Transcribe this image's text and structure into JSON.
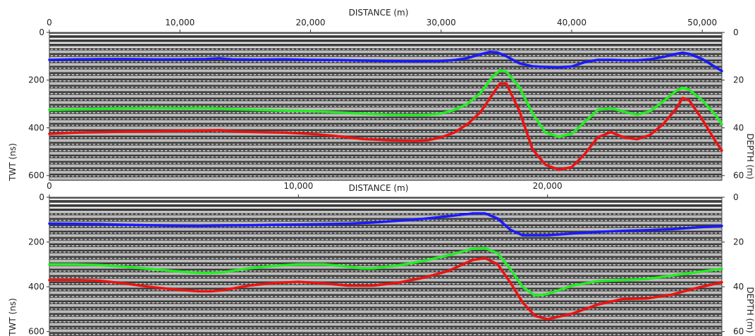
{
  "chart_data": [
    {
      "type": "line",
      "xlabel": "DISTANCE (m)",
      "ylabel": "TWT (ns)",
      "y2label": "DEPTH (m)",
      "xlim": [
        0,
        51500
      ],
      "ylim": [
        0,
        620
      ],
      "y2lim": [
        0,
        62
      ],
      "x_ticks": [
        0,
        10000,
        20000,
        30000,
        40000,
        50000
      ],
      "x_tick_labels": [
        "0",
        "10,000",
        "20,000",
        "30,000",
        "40,000",
        "50,000"
      ],
      "y_ticks": [
        0,
        200,
        400,
        600
      ],
      "y_tick_labels": [
        "0",
        "200",
        "400",
        "600"
      ],
      "y2_ticks": [
        0,
        20,
        40,
        60
      ],
      "y2_tick_labels": [
        "0",
        "20",
        "40",
        "60"
      ],
      "y_inverted": true,
      "grid": false,
      "background": "radargram (grayscale GPR wiggle texture)",
      "series": [
        {
          "color": "#1a1aff",
          "x": [
            0,
            2000,
            4000,
            6000,
            8000,
            10000,
            12000,
            13000,
            14000,
            16000,
            18000,
            20000,
            22000,
            24000,
            26000,
            28000,
            30000,
            31000,
            32000,
            33000,
            33700,
            34300,
            35000,
            36000,
            37000,
            38000,
            39000,
            40000,
            41000,
            42000,
            43000,
            44000,
            45000,
            46000,
            47000,
            48000,
            48500,
            49000,
            50000,
            51000,
            51500
          ],
          "y": [
            115,
            113,
            112,
            112,
            113,
            113,
            112,
            109,
            113,
            114,
            113,
            115,
            116,
            118,
            120,
            121,
            120,
            116,
            108,
            92,
            82,
            84,
            100,
            130,
            142,
            145,
            147,
            143,
            125,
            115,
            115,
            117,
            117,
            113,
            103,
            90,
            85,
            90,
            112,
            145,
            162
          ]
        },
        {
          "color": "#22ee22",
          "x": [
            0,
            2000,
            4000,
            6000,
            8000,
            10000,
            12000,
            14000,
            16000,
            18000,
            20000,
            22000,
            24000,
            26000,
            28000,
            29000,
            30000,
            31000,
            32000,
            33000,
            34000,
            34500,
            35000,
            36000,
            37000,
            38000,
            39000,
            40000,
            41000,
            42000,
            43000,
            44000,
            45000,
            46000,
            47000,
            48000,
            48500,
            49000,
            50000,
            51000,
            51500
          ],
          "y": [
            325,
            323,
            320,
            318,
            317,
            318,
            317,
            322,
            325,
            328,
            330,
            335,
            340,
            345,
            347,
            345,
            340,
            325,
            300,
            255,
            182,
            160,
            165,
            230,
            340,
            420,
            437,
            425,
            375,
            325,
            318,
            332,
            345,
            330,
            290,
            245,
            232,
            240,
            285,
            345,
            385
          ]
        },
        {
          "color": "#ee1111",
          "x": [
            0,
            2000,
            4000,
            6000,
            8000,
            10000,
            12000,
            13000,
            14000,
            16000,
            18000,
            20000,
            22000,
            24000,
            26000,
            28000,
            29000,
            30000,
            31000,
            32000,
            33000,
            34000,
            34500,
            35000,
            36000,
            37000,
            38000,
            39000,
            40000,
            41000,
            42000,
            43000,
            44000,
            45000,
            46000,
            47000,
            48000,
            48500,
            49000,
            50000,
            51000,
            51500
          ],
          "y": [
            425,
            420,
            418,
            416,
            415,
            413,
            412,
            410,
            415,
            418,
            420,
            425,
            435,
            447,
            452,
            455,
            452,
            440,
            420,
            385,
            335,
            255,
            215,
            215,
            330,
            490,
            555,
            575,
            565,
            510,
            440,
            418,
            440,
            448,
            430,
            385,
            320,
            275,
            285,
            365,
            455,
            495
          ]
        }
      ]
    },
    {
      "type": "line",
      "xlabel": "DISTANCE (m)",
      "ylabel": "TWT (ns)",
      "y2label": "DEPTH (m)",
      "xlim": [
        0,
        27000
      ],
      "ylim": [
        0,
        620
      ],
      "y2lim": [
        0,
        62
      ],
      "x_ticks": [
        0,
        10000,
        20000
      ],
      "x_tick_labels": [
        "0",
        "10,000",
        "20,000"
      ],
      "y_ticks": [
        0,
        200,
        400,
        600
      ],
      "y_tick_labels": [
        "0",
        "200",
        "400",
        "600"
      ],
      "y2_ticks": [
        0,
        20,
        40,
        60
      ],
      "y2_tick_labels": [
        "0",
        "20",
        "40",
        "60"
      ],
      "y_inverted": true,
      "grid": false,
      "background": "radargram (grayscale GPR wiggle texture)",
      "series": [
        {
          "color": "#1a1aff",
          "x": [
            0,
            1000,
            2000,
            3000,
            4000,
            5000,
            6000,
            7000,
            8000,
            9000,
            10000,
            11000,
            12000,
            13000,
            14000,
            15000,
            16000,
            17000,
            17500,
            18000,
            18500,
            19000,
            20000,
            21000,
            22000,
            23000,
            24000,
            25000,
            26000,
            27000
          ],
          "y": [
            118,
            119,
            120,
            123,
            125,
            127,
            128,
            126,
            125,
            123,
            122,
            120,
            118,
            113,
            105,
            97,
            85,
            72,
            72,
            95,
            145,
            170,
            170,
            162,
            155,
            150,
            147,
            143,
            135,
            128
          ]
        },
        {
          "color": "#22ee22",
          "x": [
            0,
            1000,
            2000,
            3000,
            4000,
            5000,
            6000,
            6500,
            7000,
            8000,
            9000,
            10000,
            11000,
            12000,
            12500,
            13000,
            14000,
            15000,
            16000,
            17000,
            17500,
            18000,
            18500,
            19000,
            19500,
            20000,
            21000,
            22000,
            23000,
            24000,
            25000,
            26000,
            27000
          ],
          "y": [
            300,
            300,
            303,
            310,
            320,
            330,
            338,
            338,
            335,
            318,
            307,
            300,
            300,
            310,
            318,
            318,
            305,
            285,
            260,
            230,
            228,
            250,
            320,
            400,
            440,
            432,
            395,
            375,
            370,
            365,
            350,
            335,
            320
          ]
        },
        {
          "color": "#ee1111",
          "x": [
            0,
            1000,
            2000,
            3000,
            4000,
            5000,
            6000,
            6500,
            7000,
            8000,
            9000,
            10000,
            11000,
            12000,
            13000,
            14000,
            15000,
            16000,
            17000,
            17500,
            18000,
            18500,
            19000,
            19500,
            20000,
            21000,
            22000,
            23000,
            24000,
            25000,
            26000,
            27000
          ],
          "y": [
            370,
            370,
            373,
            385,
            400,
            412,
            420,
            420,
            415,
            395,
            383,
            378,
            385,
            395,
            395,
            382,
            360,
            330,
            280,
            272,
            300,
            380,
            470,
            530,
            545,
            520,
            480,
            455,
            452,
            435,
            405,
            380
          ]
        }
      ]
    }
  ]
}
